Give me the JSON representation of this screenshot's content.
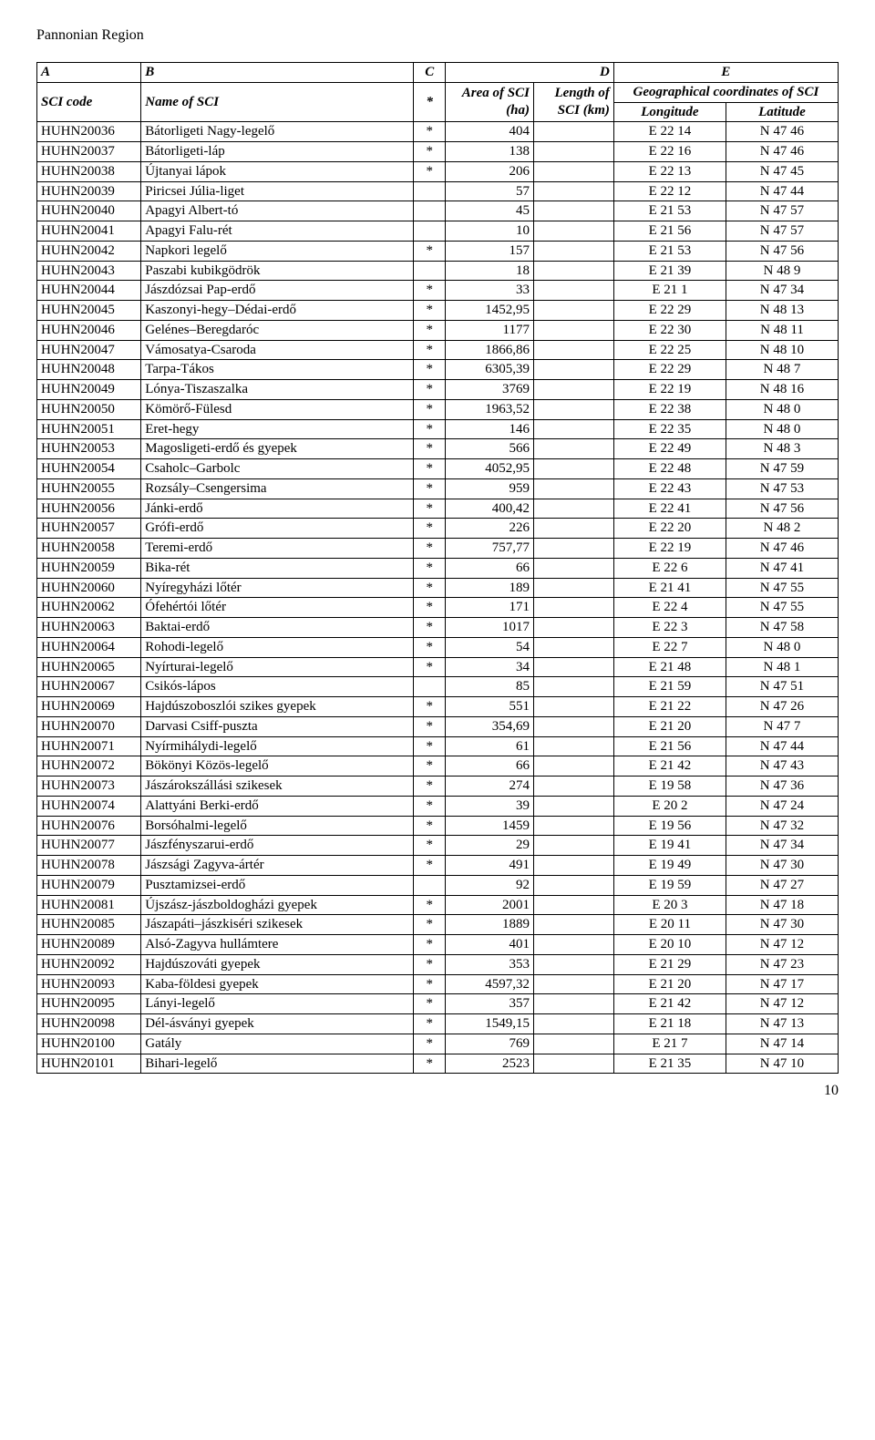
{
  "page_title": "Pannonian Region",
  "page_number": "10",
  "header": {
    "letters": [
      "A",
      "B",
      "C",
      "D",
      "E"
    ],
    "labels": {
      "sci_code": "SCI code",
      "name": "Name of SCI",
      "star": "*",
      "area": "Area of SCI (ha)",
      "length": "Length of SCI (km)",
      "coords": "Geographical coordinates of SCI",
      "longitude": "Longitude",
      "latitude": "Latitude"
    }
  },
  "rows": [
    {
      "code": "HUHN20036",
      "name": "Bátorligeti Nagy-legelő",
      "star": "*",
      "area": "404",
      "length": "",
      "lon": "E 22 14",
      "lat": "N 47 46"
    },
    {
      "code": "HUHN20037",
      "name": "Bátorligeti-láp",
      "star": "*",
      "area": "138",
      "length": "",
      "lon": "E 22 16",
      "lat": "N 47 46"
    },
    {
      "code": "HUHN20038",
      "name": "Újtanyai lápok",
      "star": "*",
      "area": "206",
      "length": "",
      "lon": "E 22 13",
      "lat": "N 47 45"
    },
    {
      "code": "HUHN20039",
      "name": "Piricsei Júlia-liget",
      "star": "",
      "area": "57",
      "length": "",
      "lon": "E 22 12",
      "lat": "N 47 44"
    },
    {
      "code": "HUHN20040",
      "name": "Apagyi Albert-tó",
      "star": "",
      "area": "45",
      "length": "",
      "lon": "E 21 53",
      "lat": "N 47 57"
    },
    {
      "code": "HUHN20041",
      "name": "Apagyi Falu-rét",
      "star": "",
      "area": "10",
      "length": "",
      "lon": "E 21 56",
      "lat": "N 47 57"
    },
    {
      "code": "HUHN20042",
      "name": "Napkori legelő",
      "star": "*",
      "area": "157",
      "length": "",
      "lon": "E 21 53",
      "lat": "N 47 56"
    },
    {
      "code": "HUHN20043",
      "name": "Paszabi kubikgödrök",
      "star": "",
      "area": "18",
      "length": "",
      "lon": "E 21 39",
      "lat": "N 48 9"
    },
    {
      "code": "HUHN20044",
      "name": "Jászdózsai Pap-erdő",
      "star": "*",
      "area": "33",
      "length": "",
      "lon": "E 21 1",
      "lat": "N 47 34"
    },
    {
      "code": "HUHN20045",
      "name": "Kaszonyi-hegy–Dédai-erdő",
      "star": "*",
      "area": "1452,95",
      "length": "",
      "lon": "E 22 29",
      "lat": "N 48 13"
    },
    {
      "code": "HUHN20046",
      "name": "Gelénes–Beregdaróc",
      "star": "*",
      "area": "1177",
      "length": "",
      "lon": "E 22 30",
      "lat": "N 48 11"
    },
    {
      "code": "HUHN20047",
      "name": "Vámosatya-Csaroda",
      "star": "*",
      "area": "1866,86",
      "length": "",
      "lon": "E 22 25",
      "lat": "N 48 10"
    },
    {
      "code": "HUHN20048",
      "name": "Tarpa-Tákos",
      "star": "*",
      "area": "6305,39",
      "length": "",
      "lon": "E 22 29",
      "lat": "N 48 7"
    },
    {
      "code": "HUHN20049",
      "name": "Lónya-Tiszaszalka",
      "star": "*",
      "area": "3769",
      "length": "",
      "lon": "E 22 19",
      "lat": "N 48 16"
    },
    {
      "code": "HUHN20050",
      "name": "Kömörő-Fülesd",
      "star": "*",
      "area": "1963,52",
      "length": "",
      "lon": "E 22 38",
      "lat": "N 48 0"
    },
    {
      "code": "HUHN20051",
      "name": "Eret-hegy",
      "star": "*",
      "area": "146",
      "length": "",
      "lon": "E 22 35",
      "lat": "N 48 0"
    },
    {
      "code": "HUHN20053",
      "name": "Magosligeti-erdő és gyepek",
      "star": "*",
      "area": "566",
      "length": "",
      "lon": "E 22 49",
      "lat": "N 48 3"
    },
    {
      "code": "HUHN20054",
      "name": "Csaholc–Garbolc",
      "star": "*",
      "area": "4052,95",
      "length": "",
      "lon": "E 22 48",
      "lat": "N 47 59"
    },
    {
      "code": "HUHN20055",
      "name": "Rozsály–Csengersima",
      "star": "*",
      "area": "959",
      "length": "",
      "lon": "E 22 43",
      "lat": "N 47 53"
    },
    {
      "code": "HUHN20056",
      "name": "Jánki-erdő",
      "star": "*",
      "area": "400,42",
      "length": "",
      "lon": "E 22 41",
      "lat": "N 47 56"
    },
    {
      "code": "HUHN20057",
      "name": "Grófi-erdő",
      "star": "*",
      "area": "226",
      "length": "",
      "lon": "E 22 20",
      "lat": "N 48 2"
    },
    {
      "code": "HUHN20058",
      "name": "Teremi-erdő",
      "star": "*",
      "area": "757,77",
      "length": "",
      "lon": "E 22 19",
      "lat": "N 47 46"
    },
    {
      "code": "HUHN20059",
      "name": "Bika-rét",
      "star": "*",
      "area": "66",
      "length": "",
      "lon": "E 22 6",
      "lat": "N 47 41"
    },
    {
      "code": "HUHN20060",
      "name": "Nyíregyházi lőtér",
      "star": "*",
      "area": "189",
      "length": "",
      "lon": "E 21 41",
      "lat": "N 47 55"
    },
    {
      "code": "HUHN20062",
      "name": "Ófehértói lőtér",
      "star": "*",
      "area": "171",
      "length": "",
      "lon": "E 22 4",
      "lat": "N 47 55"
    },
    {
      "code": "HUHN20063",
      "name": "Baktai-erdő",
      "star": "*",
      "area": "1017",
      "length": "",
      "lon": "E 22 3",
      "lat": "N 47 58"
    },
    {
      "code": "HUHN20064",
      "name": "Rohodi-legelő",
      "star": "*",
      "area": "54",
      "length": "",
      "lon": "E 22 7",
      "lat": "N 48 0"
    },
    {
      "code": "HUHN20065",
      "name": "Nyírturai-legelő",
      "star": "*",
      "area": "34",
      "length": "",
      "lon": "E 21 48",
      "lat": "N 48 1"
    },
    {
      "code": "HUHN20067",
      "name": "Csikós-lápos",
      "star": "",
      "area": "85",
      "length": "",
      "lon": "E 21 59",
      "lat": "N 47 51"
    },
    {
      "code": "HUHN20069",
      "name": "Hajdúszoboszlói szikes gyepek",
      "star": "*",
      "area": "551",
      "length": "",
      "lon": "E 21 22",
      "lat": "N 47 26"
    },
    {
      "code": "HUHN20070",
      "name": "Darvasi Csiff-puszta",
      "star": "*",
      "area": "354,69",
      "length": "",
      "lon": "E 21 20",
      "lat": "N 47 7"
    },
    {
      "code": "HUHN20071",
      "name": "Nyírmihálydi-legelő",
      "star": "*",
      "area": "61",
      "length": "",
      "lon": "E 21 56",
      "lat": "N 47 44"
    },
    {
      "code": "HUHN20072",
      "name": "Bökönyi Közös-legelő",
      "star": "*",
      "area": "66",
      "length": "",
      "lon": "E 21 42",
      "lat": "N 47 43"
    },
    {
      "code": "HUHN20073",
      "name": "Jászárokszállási szikesek",
      "star": "*",
      "area": "274",
      "length": "",
      "lon": "E 19 58",
      "lat": "N 47 36"
    },
    {
      "code": "HUHN20074",
      "name": "Alattyáni Berki-erdő",
      "star": "*",
      "area": "39",
      "length": "",
      "lon": "E 20 2",
      "lat": "N 47 24"
    },
    {
      "code": "HUHN20076",
      "name": "Borsóhalmi-legelő",
      "star": "*",
      "area": "1459",
      "length": "",
      "lon": "E 19 56",
      "lat": "N 47 32"
    },
    {
      "code": "HUHN20077",
      "name": "Jászfényszarui-erdő",
      "star": "*",
      "area": "29",
      "length": "",
      "lon": "E 19 41",
      "lat": "N 47 34"
    },
    {
      "code": "HUHN20078",
      "name": "Jászsági Zagyva-ártér",
      "star": "*",
      "area": "491",
      "length": "",
      "lon": "E 19 49",
      "lat": "N 47 30"
    },
    {
      "code": "HUHN20079",
      "name": "Pusztamizsei-erdő",
      "star": "",
      "area": "92",
      "length": "",
      "lon": "E 19 59",
      "lat": "N 47 27"
    },
    {
      "code": "HUHN20081",
      "name": "Újszász-jászboldogházi gyepek",
      "star": "*",
      "area": "2001",
      "length": "",
      "lon": "E 20 3",
      "lat": "N 47 18"
    },
    {
      "code": "HUHN20085",
      "name": "Jászapáti–jászkiséri szikesek",
      "star": "*",
      "area": "1889",
      "length": "",
      "lon": "E 20 11",
      "lat": "N 47 30"
    },
    {
      "code": "HUHN20089",
      "name": "Alsó-Zagyva hullámtere",
      "star": "*",
      "area": "401",
      "length": "",
      "lon": "E 20 10",
      "lat": "N 47 12"
    },
    {
      "code": "HUHN20092",
      "name": "Hajdúszováti gyepek",
      "star": "*",
      "area": "353",
      "length": "",
      "lon": "E 21 29",
      "lat": "N 47 23"
    },
    {
      "code": "HUHN20093",
      "name": "Kaba-földesi gyepek",
      "star": "*",
      "area": "4597,32",
      "length": "",
      "lon": "E 21 20",
      "lat": "N 47 17"
    },
    {
      "code": "HUHN20095",
      "name": "Lányi-legelő",
      "star": "*",
      "area": "357",
      "length": "",
      "lon": "E 21 42",
      "lat": "N 47 12"
    },
    {
      "code": "HUHN20098",
      "name": "Dél-ásványi gyepek",
      "star": "*",
      "area": "1549,15",
      "length": "",
      "lon": "E 21 18",
      "lat": "N 47 13"
    },
    {
      "code": "HUHN20100",
      "name": "Gatály",
      "star": "*",
      "area": "769",
      "length": "",
      "lon": "E 21 7",
      "lat": "N 47 14"
    },
    {
      "code": "HUHN20101",
      "name": "Bihari-legelő",
      "star": "*",
      "area": "2523",
      "length": "",
      "lon": "E 21 35",
      "lat": "N 47 10"
    }
  ]
}
